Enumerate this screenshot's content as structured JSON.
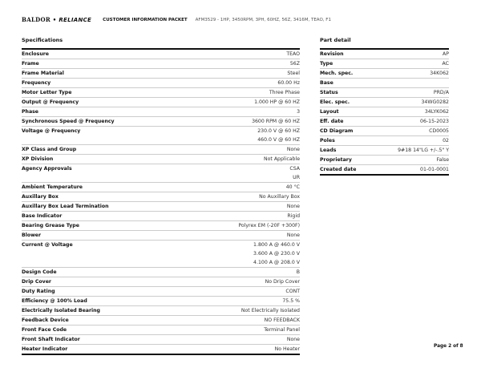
{
  "header": {
    "logo": "BALDOR • RELIANCE",
    "doc_title": "CUSTOMER INFORMATION PACKET",
    "subtitle": "AFM3529 - 1HP, 3450RPM, 3PH, 60HZ, 56Z, 3416M, TEAO, F1"
  },
  "specifications": {
    "title": "Specifications",
    "rows": [
      {
        "label": "Enclosure",
        "values": [
          "TEAO"
        ]
      },
      {
        "label": "Frame",
        "values": [
          "56Z"
        ]
      },
      {
        "label": "Frame Material",
        "values": [
          "Steel"
        ]
      },
      {
        "label": "Frequency",
        "values": [
          "60.00 Hz"
        ]
      },
      {
        "label": "Motor Letter Type",
        "values": [
          "Three Phase"
        ]
      },
      {
        "label": "Output @ Frequency",
        "values": [
          "1.000 HP @ 60 HZ"
        ]
      },
      {
        "label": "Phase",
        "values": [
          "3"
        ]
      },
      {
        "label": "Synchronous Speed @ Frequency",
        "values": [
          "3600 RPM @ 60 HZ"
        ]
      },
      {
        "label": "Voltage @ Frequency",
        "values": [
          "230.0 V @ 60 HZ",
          "460.0 V @ 60 HZ"
        ]
      },
      {
        "label": "XP Class and Group",
        "values": [
          "None"
        ]
      },
      {
        "label": "XP Division",
        "values": [
          "Not Applicable"
        ]
      },
      {
        "label": "Agency Approvals",
        "values": [
          "CSA",
          "UR"
        ]
      },
      {
        "label": "Ambient Temperature",
        "values": [
          "40 °C"
        ]
      },
      {
        "label": "Auxillary Box",
        "values": [
          "No Auxillary Box"
        ]
      },
      {
        "label": "Auxillary Box Lead Termination",
        "values": [
          "None"
        ]
      },
      {
        "label": "Base Indicator",
        "values": [
          "Rigid"
        ]
      },
      {
        "label": "Bearing Grease Type",
        "values": [
          "Polyrex EM (-20F +300F)"
        ]
      },
      {
        "label": "Blower",
        "values": [
          "None"
        ]
      },
      {
        "label": "Current @ Voltage",
        "values": [
          "1.800 A @ 460.0 V",
          "3.600 A @ 230.0 V",
          "4.100 A @ 208.0 V"
        ]
      },
      {
        "label": "Design Code",
        "values": [
          "B"
        ]
      },
      {
        "label": "Drip Cover",
        "values": [
          "No Drip Cover"
        ]
      },
      {
        "label": "Duty Rating",
        "values": [
          "CONT"
        ]
      },
      {
        "label": "Efficiency @ 100% Load",
        "values": [
          "75.5 %"
        ]
      },
      {
        "label": "Electrically Isolated Bearing",
        "values": [
          "Not Electrically Isolated"
        ]
      },
      {
        "label": "Feedback Device",
        "values": [
          "NO FEEDBACK"
        ]
      },
      {
        "label": "Front Face Code",
        "values": [
          "Terminal Panel"
        ]
      },
      {
        "label": "Front Shaft Indicator",
        "values": [
          "None"
        ]
      },
      {
        "label": "Heater Indicator",
        "values": [
          "No Heater"
        ]
      }
    ]
  },
  "part_detail": {
    "title": "Part detail",
    "rows": [
      {
        "label": "Revision",
        "values": [
          "AP"
        ]
      },
      {
        "label": "Type",
        "values": [
          "AC"
        ]
      },
      {
        "label": "Mech. spec.",
        "values": [
          "34K062"
        ]
      },
      {
        "label": "Base",
        "values": [
          ""
        ]
      },
      {
        "label": "Status",
        "values": [
          "PRD/A"
        ]
      },
      {
        "label": "Elec. spec.",
        "values": [
          "34WG0282"
        ]
      },
      {
        "label": "Layout",
        "values": [
          "34LYK062"
        ]
      },
      {
        "label": "Eff. date",
        "values": [
          "06-15-2023"
        ]
      },
      {
        "label": "CD Diagram",
        "values": [
          "CD0005"
        ]
      },
      {
        "label": "Poles",
        "values": [
          "02"
        ]
      },
      {
        "label": "Leads",
        "values": [
          "9#18 14\"LG +/-.5\" Y"
        ]
      },
      {
        "label": "Proprietary",
        "values": [
          "False"
        ]
      },
      {
        "label": "Created date",
        "values": [
          "01-01-0001"
        ]
      }
    ]
  },
  "footer": {
    "page": "Page 2 of 8"
  }
}
